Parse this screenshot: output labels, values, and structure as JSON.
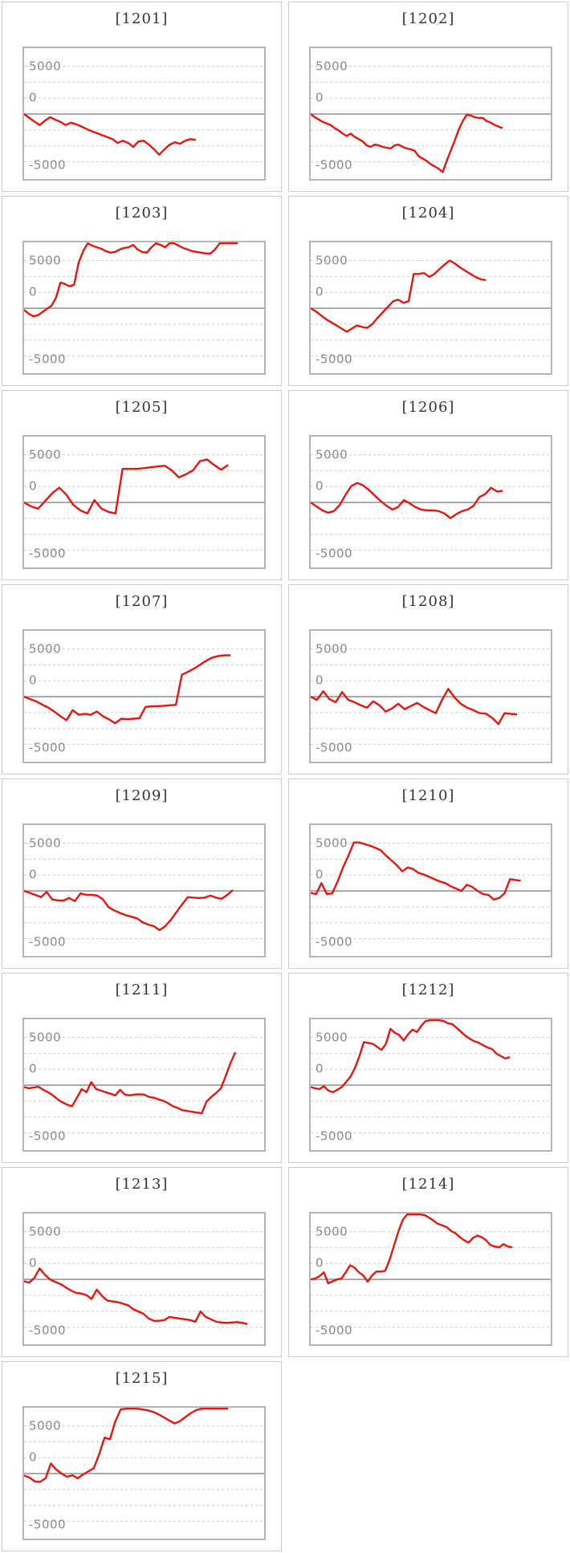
{
  "page": {
    "background": "#ffffff",
    "description": "grid of machine slump line charts"
  },
  "colors": {
    "cell_border": "#cccccc",
    "plot_border": "#b5b5b5",
    "gridline": "#cccccc",
    "zero_line": "#979797",
    "series": "#e9150d",
    "tick_label": "#8a8a8a",
    "title": "#333333"
  },
  "chart_data": {
    "type": "line",
    "grid": "dashed-horizontal",
    "legend": "none",
    "xlabel": "",
    "ylabel": "",
    "ylim": [
      -6800,
      6900
    ],
    "ytick_labels": [
      "5000",
      "0",
      "-5000"
    ],
    "ytick_values": [
      5000,
      0,
      -5000
    ],
    "gridline_values": [
      5000,
      3333,
      1667,
      -1667,
      -3333,
      -5000
    ],
    "zero_line_value": 0,
    "charts": [
      {
        "title": "[1201]",
        "x_end": 0.715,
        "values": [
          0,
          -400,
          -800,
          -1150,
          -700,
          -330,
          -600,
          -820,
          -1150,
          -900,
          -1070,
          -1300,
          -1560,
          -1800,
          -2000,
          -2210,
          -2420,
          -2620,
          -3030,
          -2790,
          -3030,
          -3440,
          -2870,
          -2790,
          -3200,
          -3700,
          -4260,
          -3700,
          -3200,
          -2950,
          -3110,
          -2790,
          -2620,
          -2700
        ]
      },
      {
        "title": "[1202]",
        "x_end": 0.8,
        "values": [
          0,
          -330,
          -570,
          -820,
          -980,
          -1150,
          -1480,
          -1720,
          -2050,
          -2300,
          -2050,
          -2380,
          -2620,
          -2870,
          -3280,
          -3440,
          -3200,
          -3280,
          -3440,
          -3520,
          -3600,
          -3280,
          -3200,
          -3440,
          -3600,
          -3690,
          -3850,
          -4430,
          -4670,
          -4920,
          -5250,
          -5490,
          -5740,
          -6070,
          -4920,
          -3850,
          -2790,
          -1640,
          -740,
          -80,
          -160,
          -330,
          -410,
          -410,
          -740,
          -900,
          -1150,
          -1310,
          -1480
        ]
      },
      {
        "title": "[1203]",
        "x_end": 0.89,
        "values": [
          -160,
          -570,
          -820,
          -740,
          -410,
          -80,
          250,
          1070,
          2700,
          2540,
          2300,
          2460,
          4750,
          5980,
          6800,
          6560,
          6390,
          6230,
          5980,
          5820,
          5900,
          6150,
          6310,
          6390,
          6640,
          6150,
          5900,
          5820,
          6390,
          6890,
          6640,
          6390,
          6800,
          6890,
          6560,
          6310,
          6150,
          5980,
          5900,
          5820,
          5740,
          5740,
          6150,
          6800,
          7050,
          7050,
          7050,
          7050
        ]
      },
      {
        "title": "[1204]",
        "x_end": 0.73,
        "values": [
          0,
          -330,
          -740,
          -1150,
          -1480,
          -1800,
          -2130,
          -2460,
          -2130,
          -1800,
          -1970,
          -2050,
          -1640,
          -980,
          -410,
          160,
          740,
          900,
          570,
          740,
          3600,
          3600,
          3690,
          3280,
          3600,
          4100,
          4590,
          5000,
          4670,
          4260,
          3930,
          3600,
          3280,
          3030,
          2950
        ]
      },
      {
        "title": "[1205]",
        "x_end": 0.85,
        "values": [
          0,
          -410,
          -650,
          160,
          980,
          1550,
          820,
          -250,
          -820,
          -1150,
          250,
          -650,
          -980,
          -1150,
          3520,
          3520,
          3520,
          3600,
          3690,
          3770,
          3850,
          3360,
          2620,
          2950,
          3360,
          4340,
          4510,
          3930,
          3440,
          3930
        ]
      },
      {
        "title": "[1206]",
        "x_end": 0.8,
        "values": [
          0,
          -410,
          -820,
          -1070,
          -900,
          -250,
          820,
          1720,
          2050,
          1800,
          1310,
          740,
          160,
          -330,
          -740,
          -490,
          250,
          -80,
          -490,
          -740,
          -820,
          -820,
          -900,
          -1150,
          -1640,
          -1230,
          -900,
          -740,
          -330,
          570,
          900,
          1550,
          1150,
          1230
        ]
      },
      {
        "title": "[1207]",
        "x_end": 0.86,
        "values": [
          0,
          -250,
          -490,
          -820,
          -1150,
          -1560,
          -2050,
          -2460,
          -1400,
          -1890,
          -1800,
          -1890,
          -1550,
          -2050,
          -2380,
          -2790,
          -2300,
          -2350,
          -2300,
          -2250,
          -1070,
          -1000,
          -980,
          -950,
          -900,
          -850,
          2300,
          2620,
          2950,
          3360,
          3770,
          4100,
          4260,
          4340,
          4340
        ]
      },
      {
        "title": "[1208]",
        "x_end": 0.86,
        "values": [
          0,
          -330,
          570,
          -250,
          -570,
          490,
          -330,
          -570,
          -900,
          -1150,
          -490,
          -900,
          -1560,
          -1230,
          -740,
          -1310,
          -980,
          -650,
          -1070,
          -1400,
          -1720,
          -330,
          820,
          -80,
          -740,
          -1150,
          -1400,
          -1720,
          -1770,
          -2210,
          -2870,
          -1720,
          -1800,
          -1850
        ]
      },
      {
        "title": "[1209]",
        "x_end": 0.87,
        "values": [
          0,
          -200,
          -410,
          -650,
          -100,
          -900,
          -980,
          -1000,
          -740,
          -1070,
          -250,
          -410,
          -410,
          -490,
          -900,
          -1720,
          -2050,
          -2300,
          -2540,
          -2700,
          -2870,
          -3280,
          -3520,
          -3690,
          -4100,
          -3690,
          -3030,
          -2210,
          -1400,
          -650,
          -700,
          -740,
          -700,
          -490,
          -700,
          -820,
          -410,
          80
        ]
      },
      {
        "title": "[1210]",
        "x_end": 0.875,
        "values": [
          -200,
          -330,
          820,
          -330,
          -250,
          980,
          2460,
          3690,
          5080,
          5080,
          4920,
          4750,
          4510,
          4260,
          3690,
          3200,
          2700,
          2050,
          2460,
          2300,
          1890,
          1720,
          1480,
          1230,
          980,
          820,
          490,
          250,
          0,
          650,
          410,
          0,
          -330,
          -410,
          -900,
          -740,
          -250,
          1230,
          1150,
          1070
        ]
      },
      {
        "title": "[1211]",
        "x_end": 0.88,
        "values": [
          -200,
          -330,
          -250,
          -160,
          -490,
          -740,
          -1070,
          -1480,
          -1800,
          -2050,
          -2210,
          -1310,
          -410,
          -740,
          330,
          -410,
          -570,
          -740,
          -900,
          -1070,
          -490,
          -980,
          -1070,
          -980,
          -950,
          -980,
          -1230,
          -1310,
          -1480,
          -1640,
          -1890,
          -2210,
          -2380,
          -2620,
          -2700,
          -2790,
          -2870,
          -2950,
          -1720,
          -1230,
          -820,
          -330,
          980,
          2300,
          3440
        ]
      },
      {
        "title": "[1212]",
        "x_end": 0.83,
        "values": [
          -200,
          -330,
          -410,
          -100,
          -570,
          -740,
          -490,
          -200,
          330,
          900,
          1800,
          3030,
          4510,
          4430,
          4340,
          4020,
          3690,
          4340,
          5900,
          5490,
          5250,
          4670,
          5330,
          5820,
          5570,
          6230,
          6720,
          6970,
          6890,
          6950,
          6720,
          6470,
          6390,
          5980,
          5570,
          5160,
          4840,
          4590,
          4430,
          4180,
          3930,
          3770,
          3280,
          3030,
          2790,
          2950
        ]
      },
      {
        "title": "[1213]",
        "x_end": 0.93,
        "values": [
          -200,
          -330,
          160,
          1150,
          490,
          0,
          -250,
          -490,
          -820,
          -1150,
          -1400,
          -1480,
          -1640,
          -2050,
          -1070,
          -1720,
          -2210,
          -2300,
          -2380,
          -2540,
          -2700,
          -3110,
          -3360,
          -3600,
          -4100,
          -4340,
          -4340,
          -4260,
          -3930,
          -4020,
          -4100,
          -4180,
          -4260,
          -4430,
          -3360,
          -3930,
          -4180,
          -4430,
          -4510,
          -4550,
          -4510,
          -4470,
          -4550,
          -4670
        ]
      },
      {
        "title": "[1214]",
        "x_end": 0.84,
        "values": [
          0,
          80,
          330,
          740,
          -410,
          -200,
          0,
          80,
          740,
          1480,
          1230,
          740,
          410,
          -250,
          410,
          820,
          820,
          900,
          2050,
          3520,
          5000,
          6230,
          6890,
          7050,
          7050,
          6890,
          6720,
          6470,
          6150,
          5820,
          5660,
          5490,
          5080,
          4840,
          4430,
          4100,
          3850,
          4340,
          4590,
          4430,
          4100,
          3600,
          3440,
          3360,
          3690,
          3440,
          3360
        ]
      },
      {
        "title": "[1215]",
        "x_end": 0.85,
        "values": [
          -200,
          -410,
          -820,
          -850,
          -490,
          1070,
          410,
          0,
          -330,
          -170,
          -490,
          -80,
          250,
          570,
          2050,
          3770,
          3600,
          5490,
          6720,
          7050,
          7050,
          7050,
          6720,
          6640,
          6470,
          6230,
          5900,
          5570,
          5250,
          5490,
          5900,
          6310,
          6640,
          6890,
          7050,
          7050,
          7050,
          7050,
          7050
        ]
      }
    ]
  }
}
